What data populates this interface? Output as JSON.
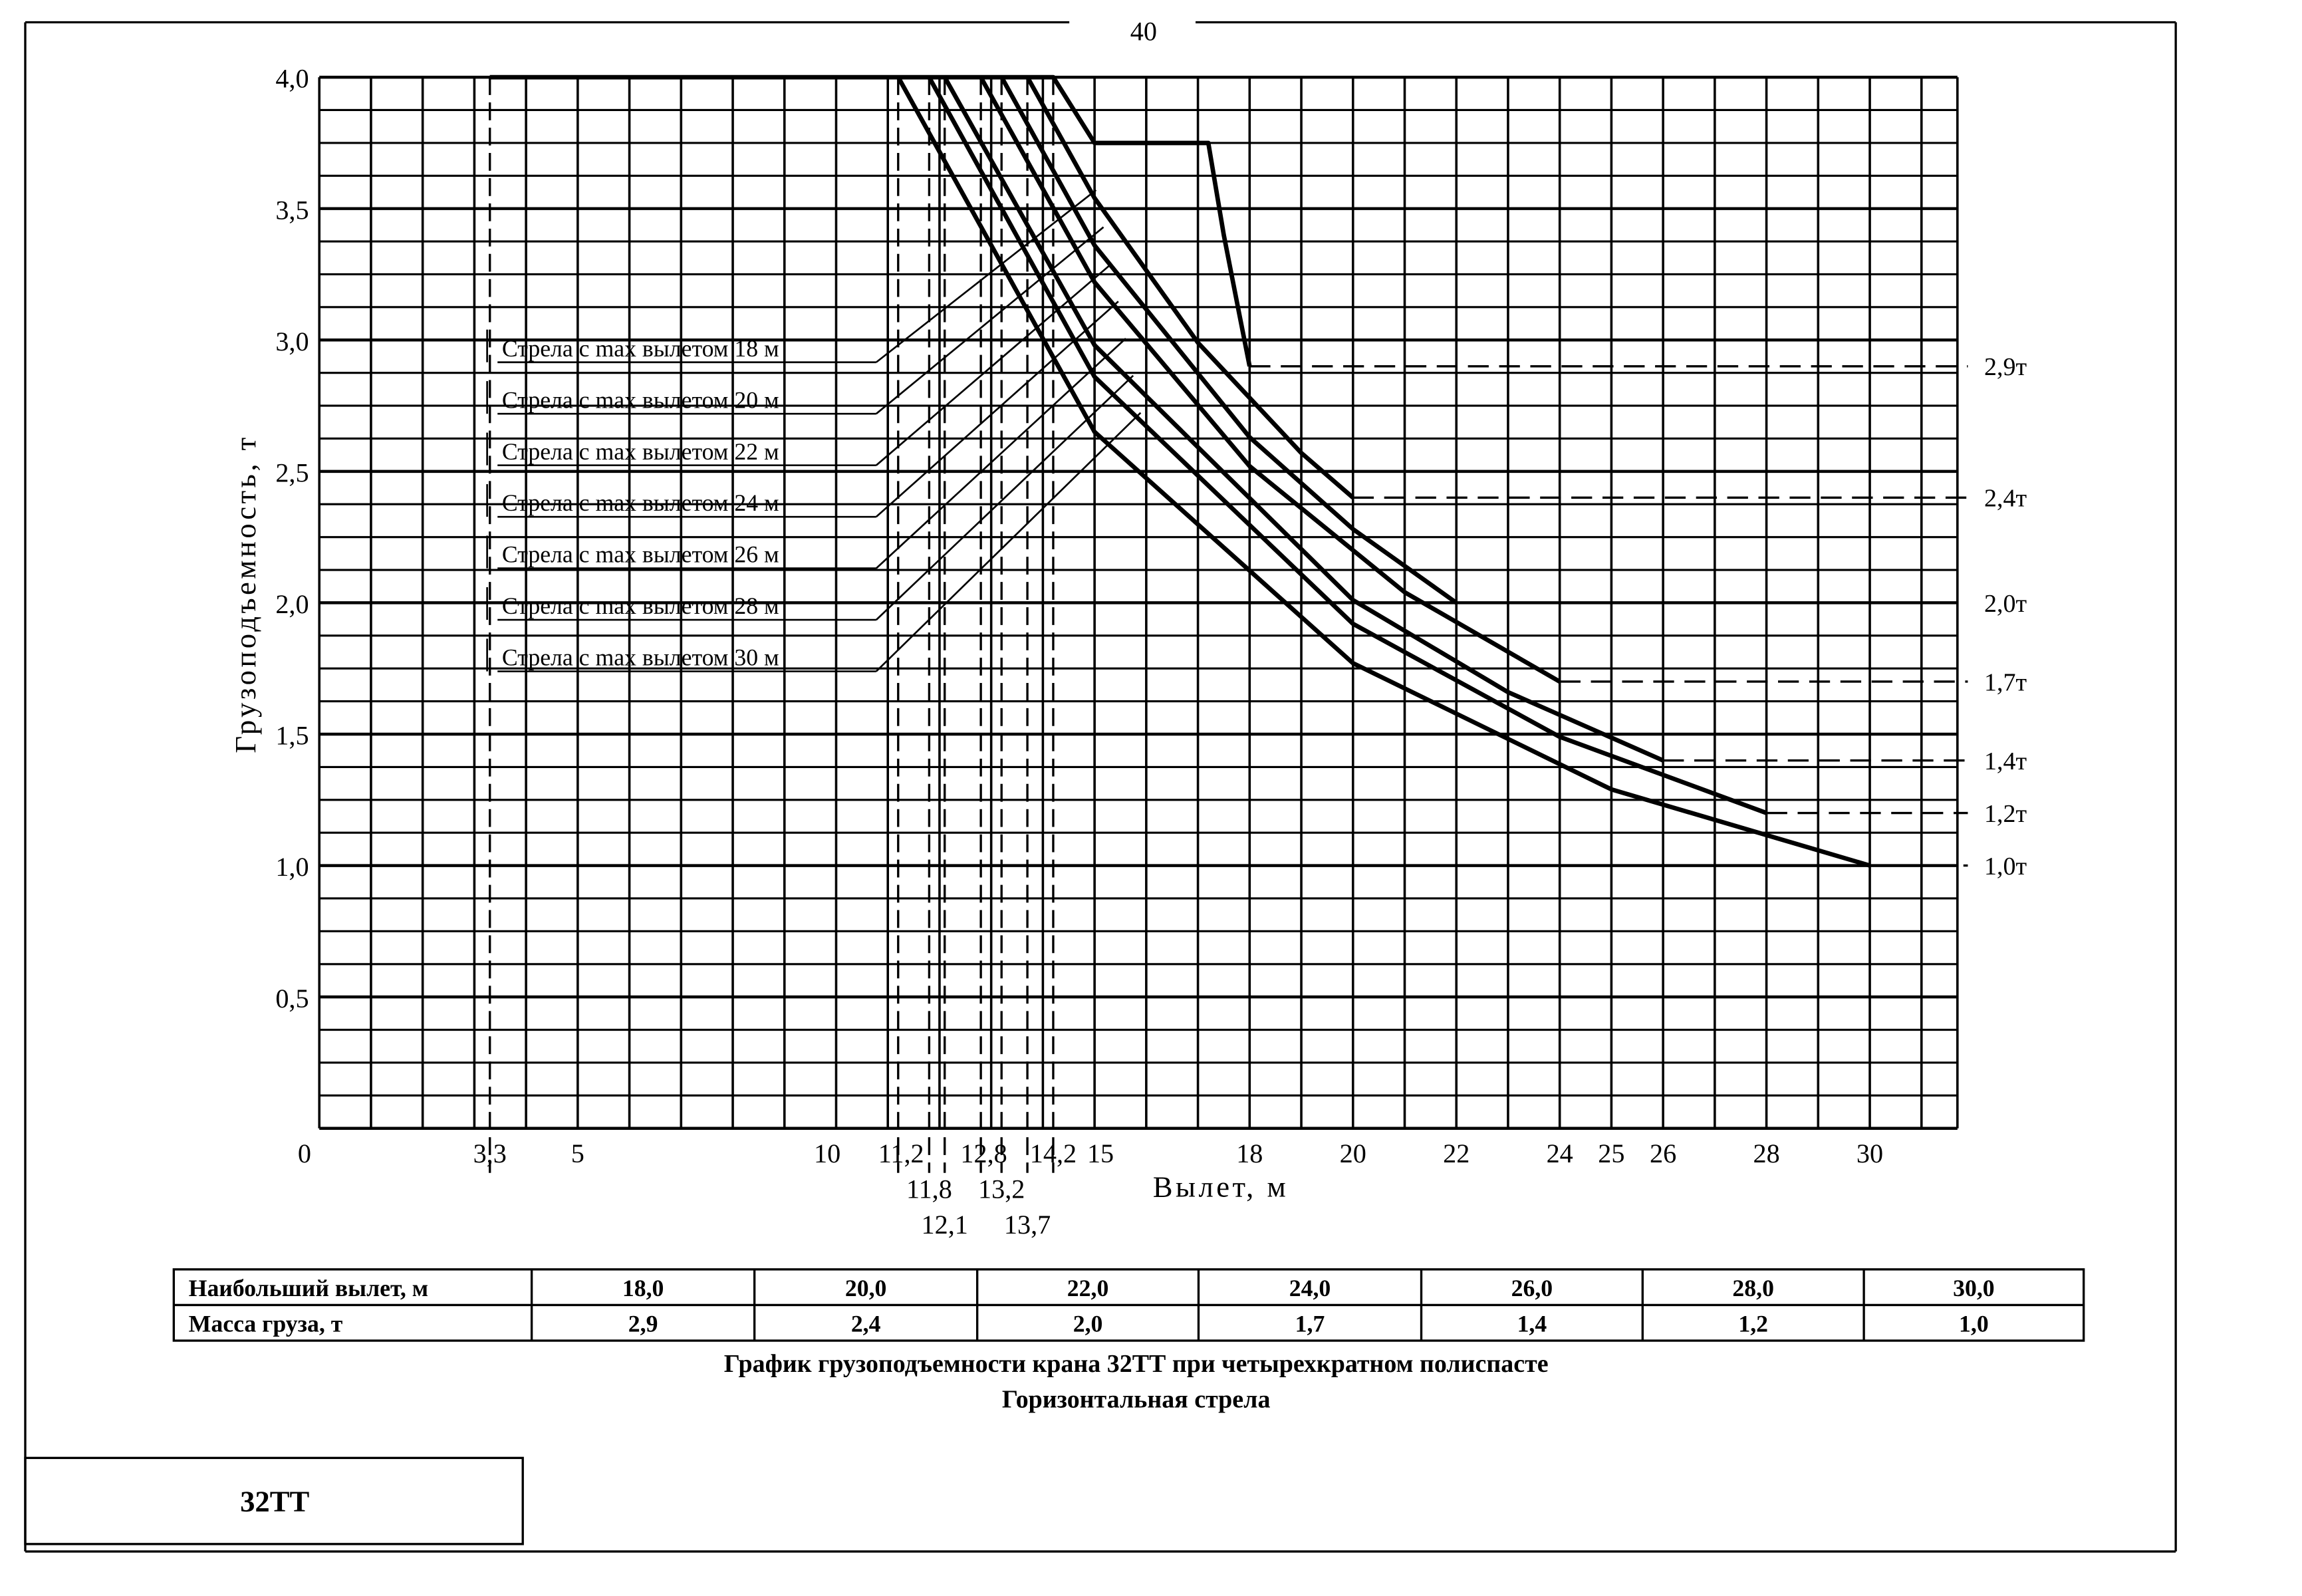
{
  "page_number": "40",
  "stamp": "32TT",
  "caption": {
    "line1": "График грузоподъемности крана 32ТТ при четырехкратном полиспасте",
    "line2": "Горизонтальная стрела"
  },
  "table": {
    "row_headers": [
      "Наибольший вылет, м",
      "Масса груза, т"
    ],
    "reach": [
      "18,0",
      "20,0",
      "22,0",
      "24,0",
      "26,0",
      "28,0",
      "30,0"
    ],
    "mass": [
      "2,9",
      "2,4",
      "2,0",
      "1,7",
      "1,4",
      "1,2",
      "1,0"
    ]
  },
  "chart_data": {
    "type": "line",
    "title": "График грузоподъемности крана 32ТТ при четырехкратном полиспасте",
    "xlabel": "Вылет, м",
    "ylabel": "Грузоподъемность, т",
    "xlim": [
      0,
      31.7
    ],
    "ylim": [
      0,
      4.0
    ],
    "grid": true,
    "y_ticks": [
      {
        "v": 4.0,
        "label": "4,0"
      },
      {
        "v": 3.5,
        "label": "3,5"
      },
      {
        "v": 3.0,
        "label": "3,0"
      },
      {
        "v": 2.5,
        "label": "2,5"
      },
      {
        "v": 2.0,
        "label": "2,0"
      },
      {
        "v": 1.5,
        "label": "1,5"
      },
      {
        "v": 1.0,
        "label": "1,0"
      },
      {
        "v": 0.5,
        "label": "0,5"
      }
    ],
    "x_ticks": [
      {
        "v": 0,
        "label": "0",
        "row": 0
      },
      {
        "v": 3.3,
        "label": "3,3",
        "row": 0
      },
      {
        "v": 5,
        "label": "5",
        "row": 0
      },
      {
        "v": 10,
        "label": "10",
        "row": 0
      },
      {
        "v": 11.2,
        "label": "11,2",
        "row": 0
      },
      {
        "v": 11.8,
        "label": "11,8",
        "row": 1
      },
      {
        "v": 12.1,
        "label": "12,1",
        "row": 2
      },
      {
        "v": 12.8,
        "label": "12,8",
        "row": 0
      },
      {
        "v": 13.2,
        "label": "13,2",
        "row": 1
      },
      {
        "v": 13.7,
        "label": "13,7",
        "row": 2
      },
      {
        "v": 14.2,
        "label": "14,2",
        "row": 0
      },
      {
        "v": 15,
        "label": "15",
        "row": 0
      },
      {
        "v": 18,
        "label": "18",
        "row": 0
      },
      {
        "v": 20,
        "label": "20",
        "row": 0
      },
      {
        "v": 22,
        "label": "22",
        "row": 0
      },
      {
        "v": 24,
        "label": "24",
        "row": 0
      },
      {
        "v": 25,
        "label": "25",
        "row": 0
      },
      {
        "v": 26,
        "label": "26",
        "row": 0
      },
      {
        "v": 28,
        "label": "28",
        "row": 0
      },
      {
        "v": 30,
        "label": "30",
        "row": 0
      }
    ],
    "dashed_reach_markers": [
      3.3,
      11.2,
      11.8,
      12.1,
      12.8,
      13.2,
      13.7,
      14.2
    ],
    "series": [
      {
        "name": "Стрела с max вылетом 18 м",
        "max_reach": 18,
        "end_load": 2.9,
        "points": [
          [
            3.3,
            4.0
          ],
          [
            14.2,
            4.0
          ],
          [
            15,
            3.75
          ],
          [
            17.2,
            3.75
          ],
          [
            17.5,
            3.4
          ],
          [
            17.8,
            3.1
          ],
          [
            18,
            2.9
          ]
        ]
      },
      {
        "name": "Стрела с max вылетом 20 м",
        "max_reach": 20,
        "end_load": 2.4,
        "points": [
          [
            13.7,
            4.0
          ],
          [
            15,
            3.54
          ],
          [
            17,
            2.99
          ],
          [
            19,
            2.57
          ],
          [
            20,
            2.4
          ]
        ]
      },
      {
        "name": "Стрела с max вылетом 22 м",
        "max_reach": 22,
        "end_load": 2.0,
        "points": [
          [
            13.2,
            4.0
          ],
          [
            15,
            3.36
          ],
          [
            18,
            2.63
          ],
          [
            20,
            2.28
          ],
          [
            22,
            2.0
          ]
        ]
      },
      {
        "name": "Стрела с max вылетом 24 м",
        "max_reach": 24,
        "end_load": 1.7,
        "points": [
          [
            12.8,
            4.0
          ],
          [
            15,
            3.22
          ],
          [
            18,
            2.52
          ],
          [
            21,
            2.04
          ],
          [
            24,
            1.7
          ]
        ]
      },
      {
        "name": "Стрела с max вылетом 26 м",
        "max_reach": 26,
        "end_load": 1.4,
        "points": [
          [
            12.1,
            4.0
          ],
          [
            15,
            2.98
          ],
          [
            20,
            2.01
          ],
          [
            23,
            1.66
          ],
          [
            26,
            1.4
          ]
        ]
      },
      {
        "name": "Стрела с max вылетом 28 м",
        "max_reach": 28,
        "end_load": 1.2,
        "points": [
          [
            11.8,
            4.0
          ],
          [
            15,
            2.86
          ],
          [
            20,
            1.92
          ],
          [
            24,
            1.49
          ],
          [
            28,
            1.2
          ]
        ]
      },
      {
        "name": "Стрела с max вылетом 30 м",
        "max_reach": 30,
        "end_load": 1.0,
        "points": [
          [
            11.2,
            4.0
          ],
          [
            15,
            2.65
          ],
          [
            20,
            1.77
          ],
          [
            25,
            1.29
          ],
          [
            30,
            1.0
          ]
        ]
      }
    ],
    "right_annotations": [
      {
        "v": 2.9,
        "label": "2,9т",
        "from": 18,
        "dashed": true
      },
      {
        "v": 2.4,
        "label": "2,4т",
        "from": 20,
        "dashed": true
      },
      {
        "v": 2.0,
        "label": "2,0т",
        "from": 22,
        "dashed": false
      },
      {
        "v": 1.7,
        "label": "1,7т",
        "from": 24,
        "dashed": true
      },
      {
        "v": 1.4,
        "label": "1,4т",
        "from": 26,
        "dashed": true
      },
      {
        "v": 1.2,
        "label": "1,2т",
        "from": 28,
        "dashed": true
      },
      {
        "v": 1.0,
        "label": "1,0т",
        "from": 30,
        "dashed": true
      }
    ]
  }
}
